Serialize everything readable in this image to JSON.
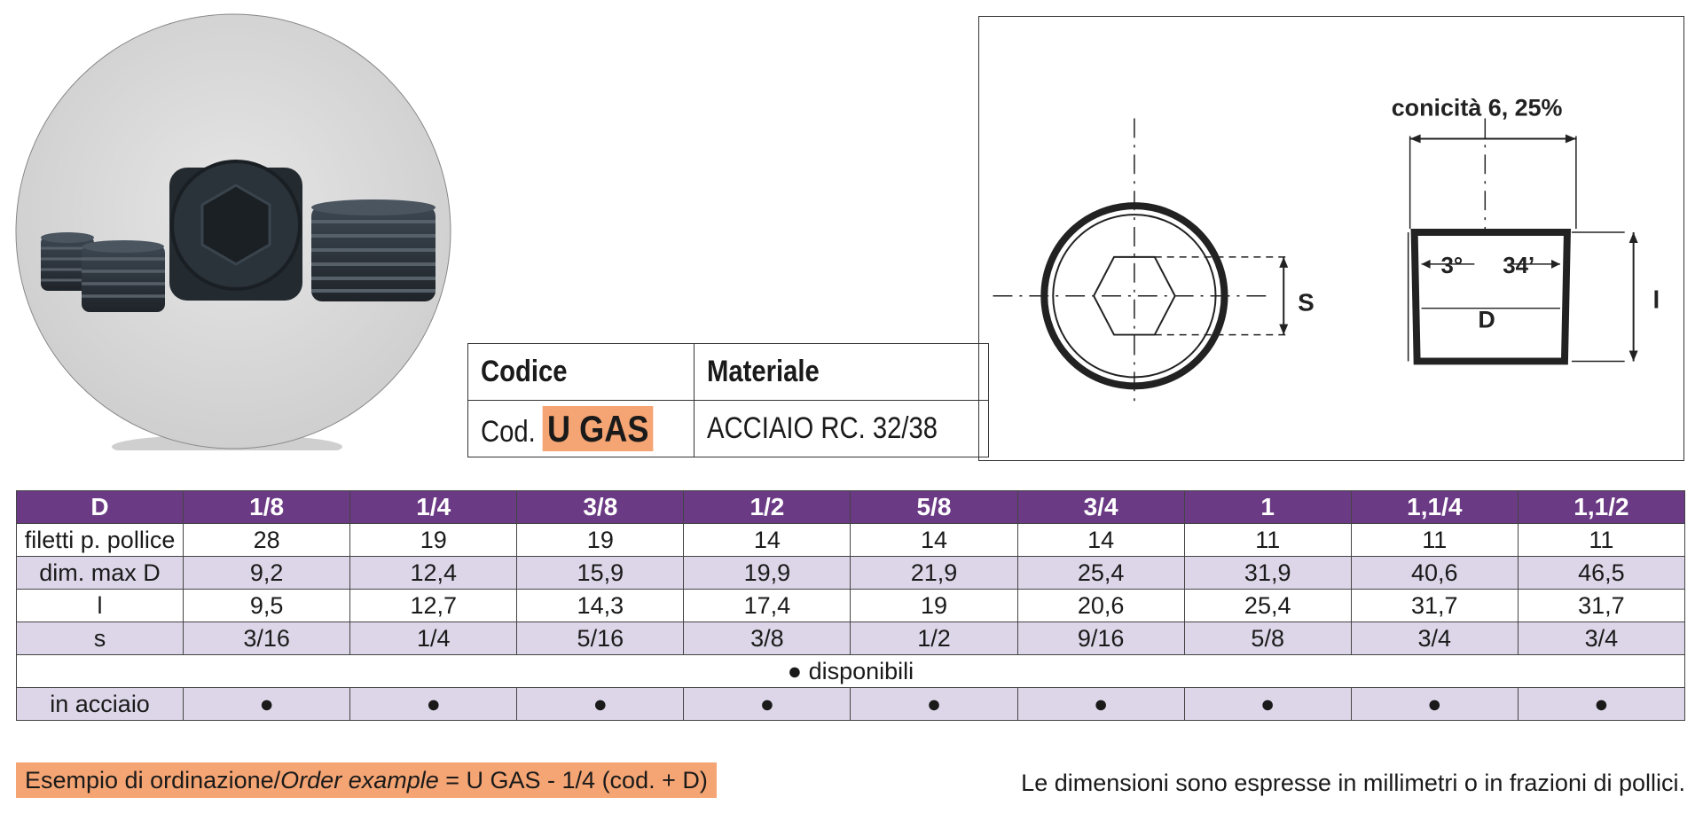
{
  "codice_table": {
    "header_codice": "Codice",
    "header_materiale": "Materiale",
    "cod_prefix": "Cod.",
    "cod_value": "U GAS",
    "materiale_value": "ACCIAIO RC. 32/38"
  },
  "diagram": {
    "taper_label": "conicità 6, 25%",
    "s_label": "S",
    "angle_deg": "3°",
    "angle_min": "34’",
    "d_label": "D",
    "l_label": "l"
  },
  "spec_table": {
    "header": [
      "D",
      "1/8",
      "1/4",
      "3/8",
      "1/2",
      "5/8",
      "3/4",
      "1",
      "1,1/4",
      "1,1/2"
    ],
    "rows": [
      {
        "label": "filetti p. pollice",
        "values": [
          "28",
          "19",
          "19",
          "14",
          "14",
          "14",
          "11",
          "11",
          "11"
        ]
      },
      {
        "label": "dim. max D",
        "values": [
          "9,2",
          "12,4",
          "15,9",
          "19,9",
          "21,9",
          "25,4",
          "31,9",
          "40,6",
          "46,5"
        ]
      },
      {
        "label": "l",
        "values": [
          "9,5",
          "12,7",
          "14,3",
          "17,4",
          "19",
          "20,6",
          "25,4",
          "31,7",
          "31,7"
        ]
      },
      {
        "label": "s",
        "values": [
          "3/16",
          "1/4",
          "5/16",
          "3/8",
          "1/2",
          "9/16",
          "5/8",
          "3/4",
          "3/4"
        ]
      }
    ],
    "availability_note": "● disponibili",
    "availability_row": {
      "label": "in acciaio",
      "values": [
        "●",
        "●",
        "●",
        "●",
        "●",
        "●",
        "●",
        "●",
        "●"
      ]
    }
  },
  "order_example": {
    "prefix": "Esempio di ordinazione/",
    "italic": "Order example",
    "suffix": " = U GAS - 1/4 (cod. + D)"
  },
  "footnote": "Le dimensioni sono espresse in millimetri o in frazioni di pollici.",
  "colors": {
    "header_purple": "#6b3a84",
    "row_lavender": "#ddd6e8",
    "highlight_orange": "#f5a574"
  }
}
